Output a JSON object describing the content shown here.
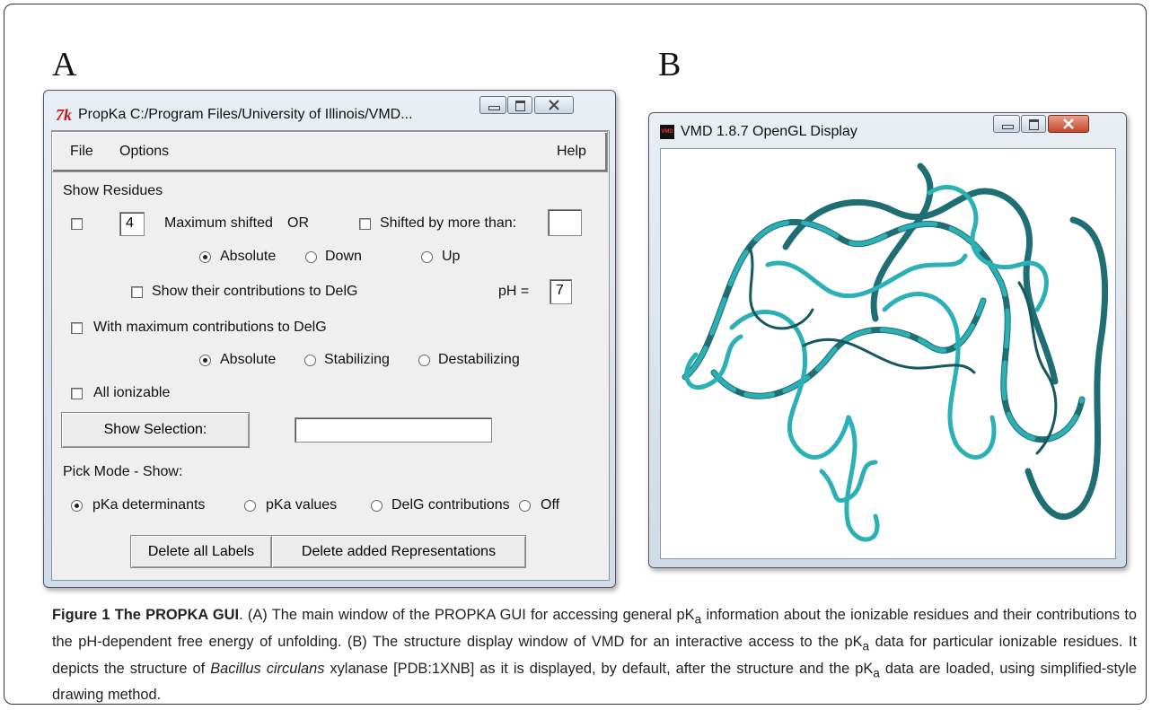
{
  "panel_labels": [
    "A",
    "B"
  ],
  "propka": {
    "icon": "7k",
    "title": "PropKa  C:/Program Files/University of Illinois/VMD...",
    "menu": [
      "File",
      "Options",
      "Help"
    ],
    "show_residues": "Show Residues",
    "max_shifted_count": 4,
    "max_shifted": "Maximum shifted",
    "or": "OR",
    "shifted_by": "Shifted by more than:",
    "direction": [
      "Absolute",
      "Down",
      "Up"
    ],
    "show_contrib": "Show their contributions to DelG",
    "ph_label": "pH =",
    "ph_value": 7,
    "with_max": "With maximum contributions to DelG",
    "contrib_type": [
      "Absolute",
      "Stabilizing",
      "Destabilizing"
    ],
    "all_ionizable": "All ionizable",
    "show_selection": "Show Selection:",
    "pick_mode": "Pick Mode - Show:",
    "pick_options": [
      "pKa determinants",
      "pKa values",
      "DelG contributions",
      "Off"
    ],
    "buttons": [
      "Delete all Labels",
      "Delete added Representations"
    ]
  },
  "vmd": {
    "icon": "VMD",
    "title": "VMD 1.8.7 OpenGL Display"
  },
  "caption": {
    "heading": "Figure 1 The PROPKA GUI",
    "text": [
      ". (A) The main window of the PROPKA GUI for accessing general pK",
      "a",
      " information about the ionizable residues and their contributions to the pH-dependent free energy of unfolding. (B) The structure display window of VMD for an interactive access to the pK",
      "a",
      " data for particular ionizable residues. It depicts the structure of ",
      "Bacillus circulans",
      " xylanase [PDB:1XNB] as it is displayed, by default, after the structure and the pK",
      "a",
      " data are loaded, using simplified-style drawing method."
    ]
  }
}
